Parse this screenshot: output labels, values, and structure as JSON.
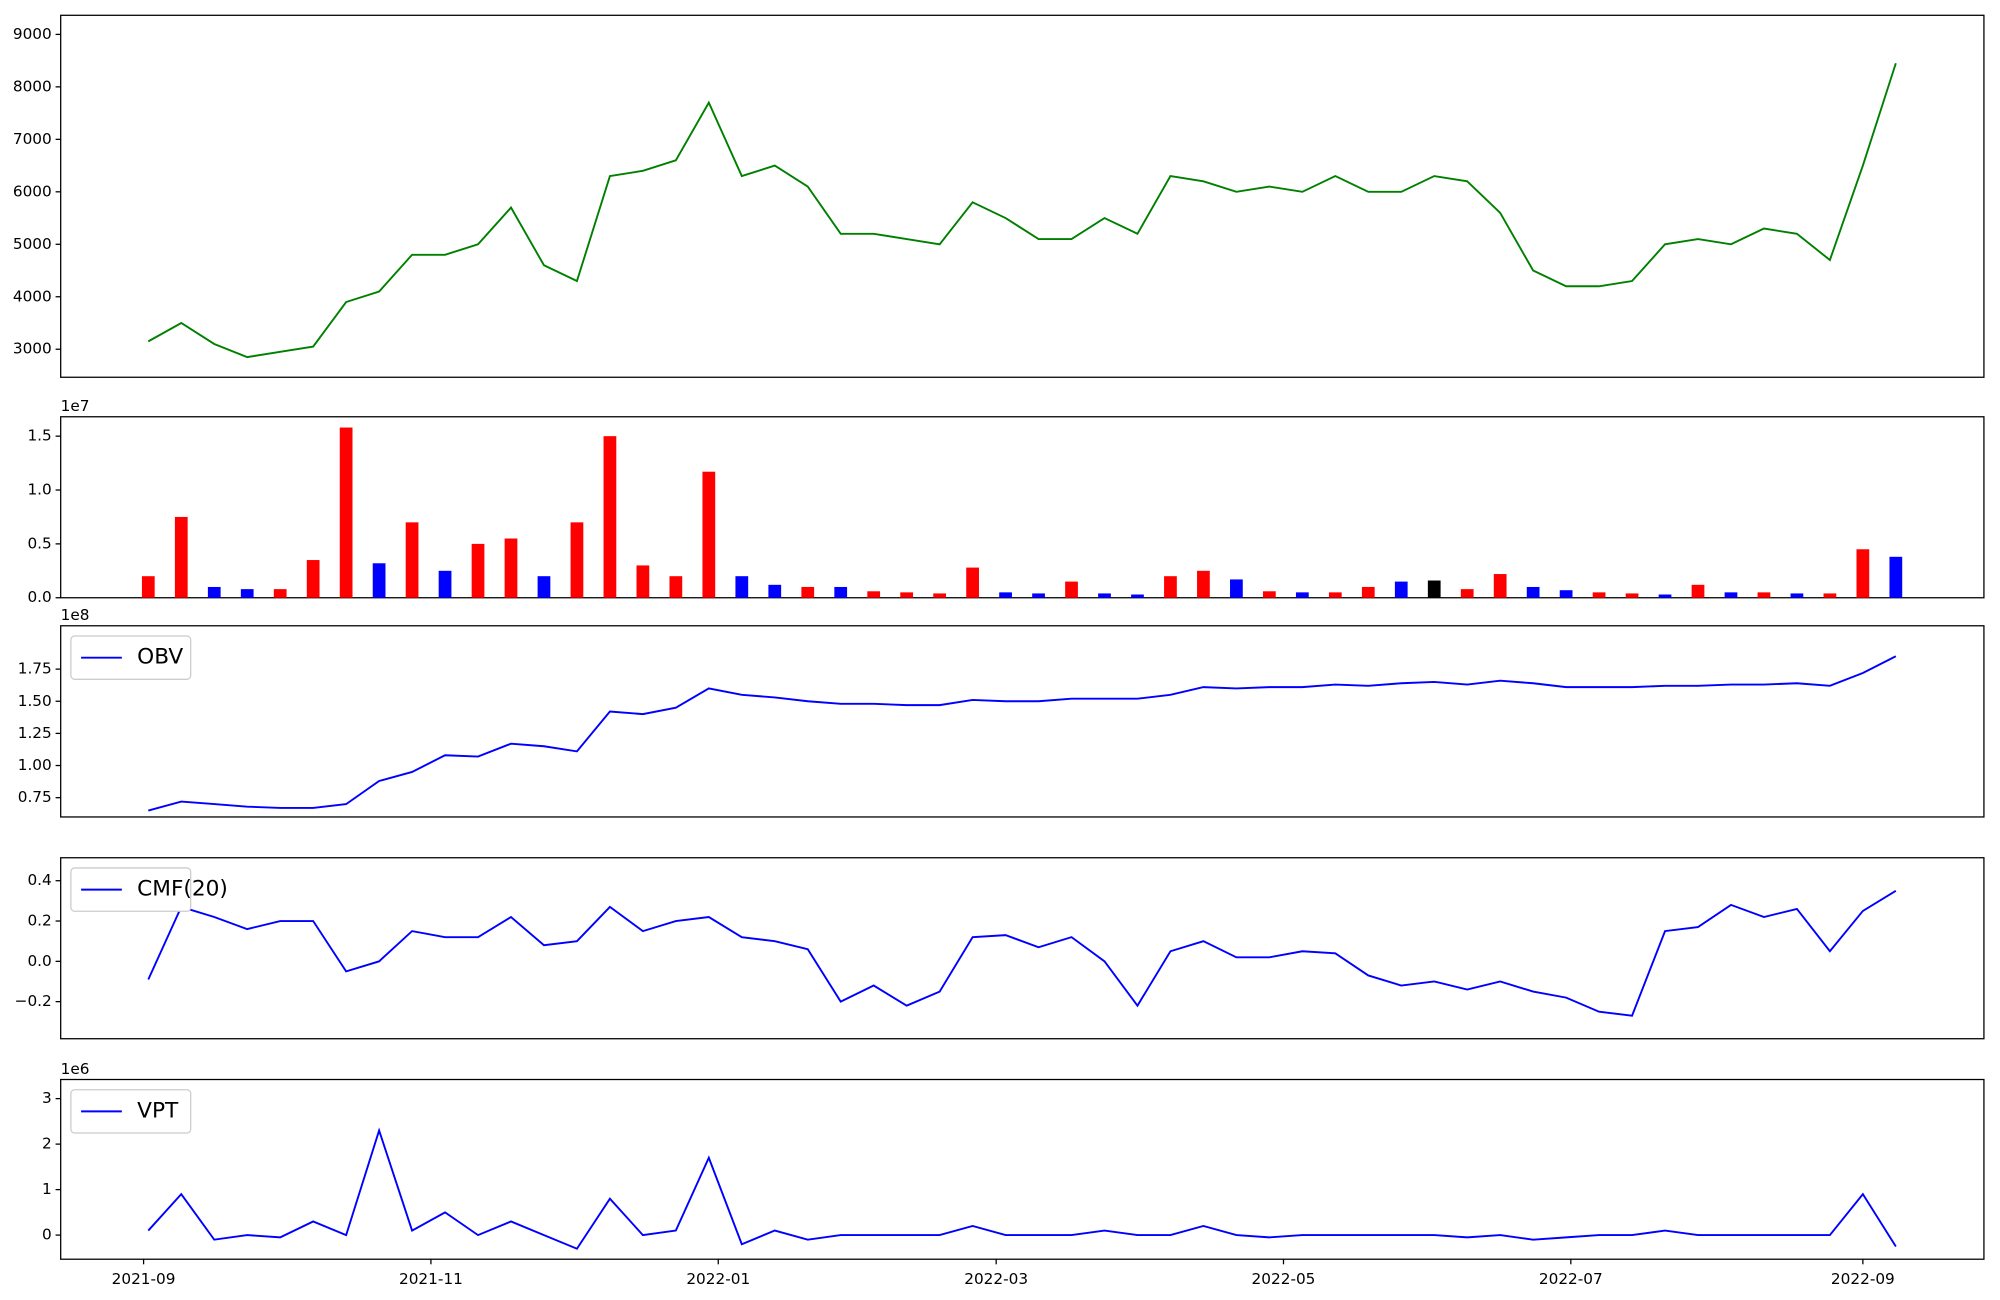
{
  "chart_data": [
    {
      "type": "line",
      "color": "#008000",
      "x": [
        18872,
        18879,
        18886,
        18893,
        18900,
        18907,
        18914,
        18921,
        18928,
        18935,
        18942,
        18949,
        18956,
        18963,
        18970,
        18977,
        18984,
        18991,
        18998,
        19005,
        19012,
        19019,
        19026,
        19033,
        19040,
        19047,
        19054,
        19061,
        19068,
        19075,
        19082,
        19089,
        19096,
        19103,
        19110,
        19117,
        19124,
        19131,
        19138,
        19145,
        19152,
        19159,
        19166,
        19173,
        19180,
        19187,
        19194,
        19201,
        19208,
        19215,
        19222,
        19229,
        19236,
        19243
      ],
      "values": [
        3150,
        3500,
        3100,
        2850,
        2950,
        3050,
        3900,
        4100,
        4800,
        4800,
        5000,
        5700,
        4600,
        4300,
        6300,
        6400,
        6600,
        7700,
        6300,
        6500,
        6100,
        5200,
        5200,
        5100,
        5000,
        5800,
        5500,
        5100,
        5100,
        5500,
        5200,
        6300,
        6200,
        6000,
        6100,
        6000,
        6300,
        6000,
        6000,
        6300,
        6200,
        5600,
        4500,
        4200,
        4200,
        4300,
        5000,
        5100,
        5000,
        5300,
        5200,
        4700,
        6500,
        8450
      ],
      "xlim": [
        18853.4,
        19261.7
      ],
      "ylim": [
        2466,
        9364
      ],
      "yticks": [
        3000,
        4000,
        5000,
        6000,
        7000,
        8000,
        9000
      ]
    },
    {
      "type": "bar",
      "y_offset_label": "1e7",
      "x": [
        18872,
        18879,
        18886,
        18893,
        18900,
        18907,
        18914,
        18921,
        18928,
        18935,
        18942,
        18949,
        18956,
        18963,
        18970,
        18977,
        18984,
        18991,
        18998,
        19005,
        19012,
        19019,
        19026,
        19033,
        19040,
        19047,
        19054,
        19061,
        19068,
        19075,
        19082,
        19089,
        19096,
        19103,
        19110,
        19117,
        19124,
        19131,
        19138,
        19145,
        19152,
        19159,
        19166,
        19173,
        19180,
        19187,
        19194,
        19201,
        19208,
        19215,
        19222,
        19229,
        19236,
        19243
      ],
      "values": [
        0.2,
        0.75,
        0.1,
        0.08,
        0.08,
        0.35,
        1.58,
        0.32,
        0.7,
        0.25,
        0.5,
        0.55,
        0.2,
        0.7,
        1.5,
        0.3,
        0.2,
        1.17,
        0.2,
        0.12,
        0.1,
        0.1,
        0.06,
        0.05,
        0.04,
        0.28,
        0.05,
        0.04,
        0.15,
        0.04,
        0.03,
        0.2,
        0.25,
        0.17,
        0.06,
        0.05,
        0.05,
        0.1,
        0.15,
        0.16,
        0.08,
        0.22,
        0.1,
        0.07,
        0.05,
        0.04,
        0.03,
        0.12,
        0.05,
        0.05,
        0.04,
        0.04,
        0.45,
        0.38
      ],
      "colors": [
        "#ff0000",
        "#ff0000",
        "#0000ff",
        "#0000ff",
        "#ff0000",
        "#ff0000",
        "#ff0000",
        "#0000ff",
        "#ff0000",
        "#0000ff",
        "#ff0000",
        "#ff0000",
        "#0000ff",
        "#ff0000",
        "#ff0000",
        "#ff0000",
        "#ff0000",
        "#ff0000",
        "#0000ff",
        "#0000ff",
        "#ff0000",
        "#0000ff",
        "#ff0000",
        "#ff0000",
        "#ff0000",
        "#ff0000",
        "#0000ff",
        "#0000ff",
        "#ff0000",
        "#0000ff",
        "#0000ff",
        "#ff0000",
        "#ff0000",
        "#0000ff",
        "#ff0000",
        "#0000ff",
        "#ff0000",
        "#ff0000",
        "#0000ff",
        "#000000",
        "#ff0000",
        "#ff0000",
        "#0000ff",
        "#0000ff",
        "#ff0000",
        "#ff0000",
        "#0000ff",
        "#ff0000",
        "#0000ff",
        "#ff0000",
        "#0000ff",
        "#ff0000",
        "#ff0000",
        "#0000ff"
      ],
      "xlim": [
        18853.4,
        19261.7
      ],
      "ylim": [
        0,
        1.68
      ],
      "yticks": [
        {
          "value": 0,
          "label": "0.0"
        },
        0.5,
        {
          "value": 1,
          "label": "1.0"
        },
        1.5
      ]
    },
    {
      "type": "line",
      "y_offset_label": "1e8",
      "legend": "upper left",
      "x": [
        18872,
        18879,
        18886,
        18893,
        18900,
        18907,
        18914,
        18921,
        18928,
        18935,
        18942,
        18949,
        18956,
        18963,
        18970,
        18977,
        18984,
        18991,
        18998,
        19005,
        19012,
        19019,
        19026,
        19033,
        19040,
        19047,
        19054,
        19061,
        19068,
        19075,
        19082,
        19089,
        19096,
        19103,
        19110,
        19117,
        19124,
        19131,
        19138,
        19145,
        19152,
        19159,
        19166,
        19173,
        19180,
        19187,
        19194,
        19201,
        19208,
        19215,
        19222,
        19229,
        19236,
        19243
      ],
      "series": [
        {
          "name": "OBV",
          "color": "#0000ff",
          "values": [
            0.65,
            0.72,
            0.7,
            0.68,
            0.67,
            0.67,
            0.7,
            0.88,
            0.95,
            1.08,
            1.07,
            1.17,
            1.15,
            1.11,
            1.42,
            1.4,
            1.45,
            1.6,
            1.55,
            1.53,
            1.5,
            1.48,
            1.48,
            1.47,
            1.47,
            1.51,
            1.5,
            1.5,
            1.52,
            1.52,
            1.52,
            1.55,
            1.61,
            1.6,
            1.61,
            1.61,
            1.63,
            1.62,
            1.64,
            1.65,
            1.63,
            1.66,
            1.64,
            1.61,
            1.61,
            1.61,
            1.62,
            1.62,
            1.63,
            1.63,
            1.64,
            1.62,
            1.72,
            1.85
          ]
        }
      ],
      "xlim": [
        18853.4,
        19261.7
      ],
      "ylim": [
        0.6,
        2.087
      ],
      "yticks": [
        0.75,
        {
          "value": 1,
          "label": "1.00"
        },
        1.25,
        {
          "value": 1.5,
          "label": "1.50"
        },
        1.75
      ]
    },
    {
      "type": "line",
      "legend": "upper left",
      "x": [
        18872,
        18879,
        18886,
        18893,
        18900,
        18907,
        18914,
        18921,
        18928,
        18935,
        18942,
        18949,
        18956,
        18963,
        18970,
        18977,
        18984,
        18991,
        18998,
        19005,
        19012,
        19019,
        19026,
        19033,
        19040,
        19047,
        19054,
        19061,
        19068,
        19075,
        19082,
        19089,
        19096,
        19103,
        19110,
        19117,
        19124,
        19131,
        19138,
        19145,
        19152,
        19159,
        19166,
        19173,
        19180,
        19187,
        19194,
        19201,
        19208,
        19215,
        19222,
        19229,
        19236,
        19243
      ],
      "series": [
        {
          "name": "CMF(20)",
          "color": "#0000ff",
          "values": [
            -0.09,
            0.27,
            0.22,
            0.16,
            0.2,
            0.2,
            -0.05,
            0,
            0.15,
            0.12,
            0.12,
            0.22,
            0.08,
            0.1,
            0.27,
            0.15,
            0.2,
            0.22,
            0.12,
            0.1,
            0.06,
            -0.2,
            -0.12,
            -0.22,
            -0.15,
            0.12,
            0.13,
            0.07,
            0.12,
            0,
            -0.22,
            0.05,
            0.1,
            0.02,
            0.02,
            0.05,
            0.04,
            -0.07,
            -0.12,
            -0.1,
            -0.14,
            -0.1,
            -0.15,
            -0.18,
            -0.25,
            -0.27,
            0.15,
            0.17,
            0.28,
            0.22,
            0.26,
            0.05,
            0.25,
            0.35
          ]
        }
      ],
      "xlim": [
        18853.4,
        19261.7
      ],
      "ylim": [
        -0.384,
        0.514
      ],
      "yticks": [
        {
          "value": -0.2,
          "label": "−0.2"
        },
        {
          "value": 0,
          "label": "0.0"
        },
        0.2,
        0.4
      ]
    },
    {
      "type": "line",
      "y_offset_label": "1e6",
      "legend": "upper left",
      "x": [
        18872,
        18879,
        18886,
        18893,
        18900,
        18907,
        18914,
        18921,
        18928,
        18935,
        18942,
        18949,
        18956,
        18963,
        18970,
        18977,
        18984,
        18991,
        18998,
        19005,
        19012,
        19019,
        19026,
        19033,
        19040,
        19047,
        19054,
        19061,
        19068,
        19075,
        19082,
        19089,
        19096,
        19103,
        19110,
        19117,
        19124,
        19131,
        19138,
        19145,
        19152,
        19159,
        19166,
        19173,
        19180,
        19187,
        19194,
        19201,
        19208,
        19215,
        19222,
        19229,
        19236,
        19243
      ],
      "series": [
        {
          "name": "VPT",
          "color": "#0000ff",
          "values": [
            0.1,
            0.9,
            -0.1,
            0,
            -0.05,
            0.3,
            0,
            2.3,
            0.1,
            0.5,
            0,
            0.3,
            0,
            -0.3,
            0.8,
            0,
            0.1,
            1.7,
            -0.2,
            0.1,
            -0.1,
            0,
            0,
            0,
            0,
            0.2,
            0,
            0,
            0,
            0.1,
            0,
            0,
            0.2,
            0,
            -0.05,
            0,
            0,
            0,
            0,
            0,
            -0.05,
            0,
            -0.1,
            -0.05,
            0,
            0,
            0.1,
            0,
            0,
            0,
            0,
            0,
            0.9,
            -0.25
          ]
        }
      ],
      "xlim": [
        18853.4,
        19261.7
      ],
      "ylim": [
        -0.53,
        3.42
      ],
      "yticks": [
        0,
        1,
        2,
        3
      ],
      "xticks": [
        {
          "value": 18871,
          "label": "2021-09"
        },
        {
          "value": 18932,
          "label": "2021-11"
        },
        {
          "value": 18993,
          "label": "2022-01"
        },
        {
          "value": 19052,
          "label": "2022-03"
        },
        {
          "value": 19113,
          "label": "2022-05"
        },
        {
          "value": 19174,
          "label": "2022-07"
        },
        {
          "value": 19236,
          "label": "2022-09"
        }
      ]
    }
  ]
}
